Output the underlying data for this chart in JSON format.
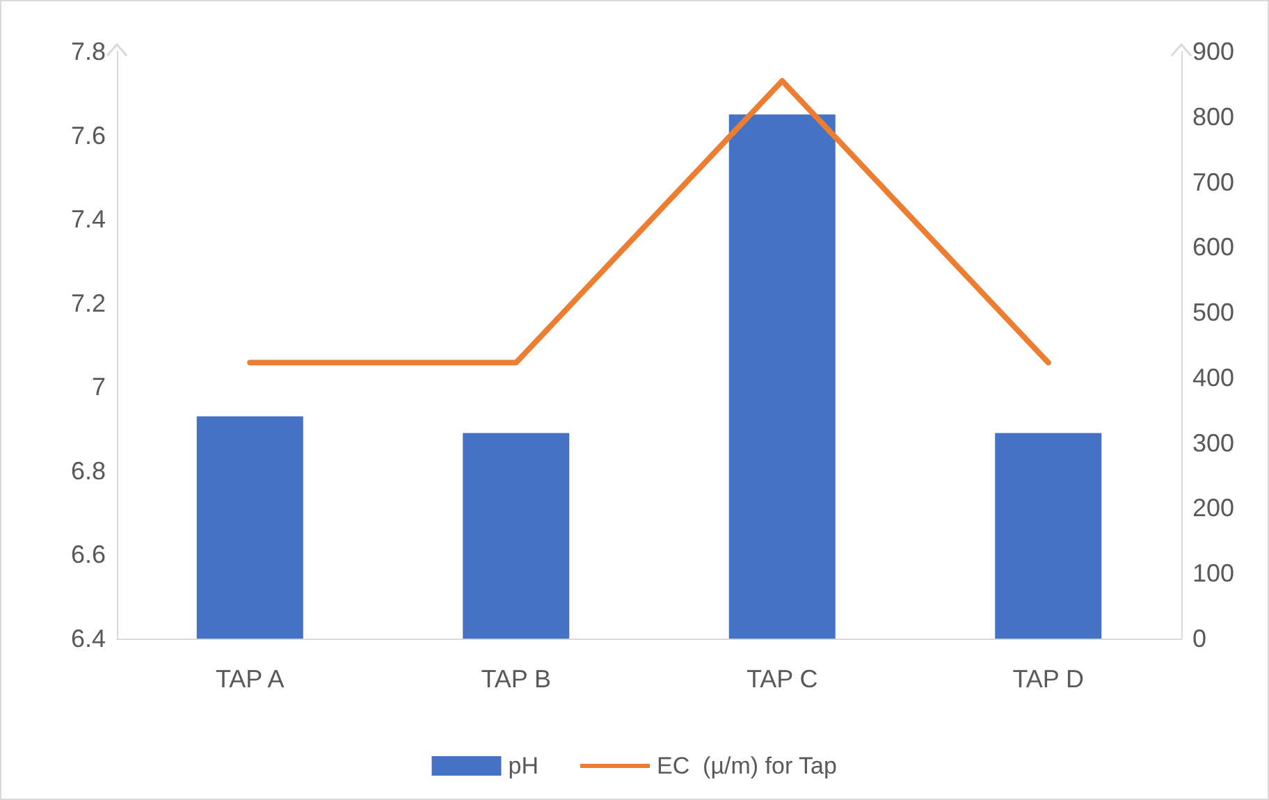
{
  "chart_data": {
    "type": "bar",
    "categories": [
      "TAP A",
      "TAP B",
      "TAP C",
      "TAP D"
    ],
    "series": [
      {
        "name": "pH",
        "color": "#4472c4",
        "values": [
          6.93,
          6.89,
          7.65,
          6.89
        ]
      },
      {
        "name": "EC  (µ/m) for Tap",
        "type": "line",
        "axis": "y2",
        "color": "#ed7d31",
        "values": [
          423,
          423,
          855,
          423
        ]
      }
    ],
    "ylim": [
      6.4,
      7.8
    ],
    "yticks": [
      {
        "value": 6.4,
        "label": "6.4"
      },
      {
        "value": 6.6,
        "label": "6.6"
      },
      {
        "value": 6.8,
        "label": "6.8"
      },
      {
        "value": 7,
        "label": "7"
      },
      {
        "value": 7.2,
        "label": "7.2"
      },
      {
        "value": 7.4,
        "label": "7.4"
      },
      {
        "value": 7.6,
        "label": "7.6"
      },
      {
        "value": 7.8,
        "label": "7.8"
      }
    ],
    "y2lim": [
      0,
      900
    ],
    "y2ticks": [
      0,
      100,
      200,
      300,
      400,
      500,
      600,
      700,
      800,
      900
    ],
    "grid": false,
    "legend": "bottom",
    "marker": "none",
    "line_style": "solid"
  }
}
